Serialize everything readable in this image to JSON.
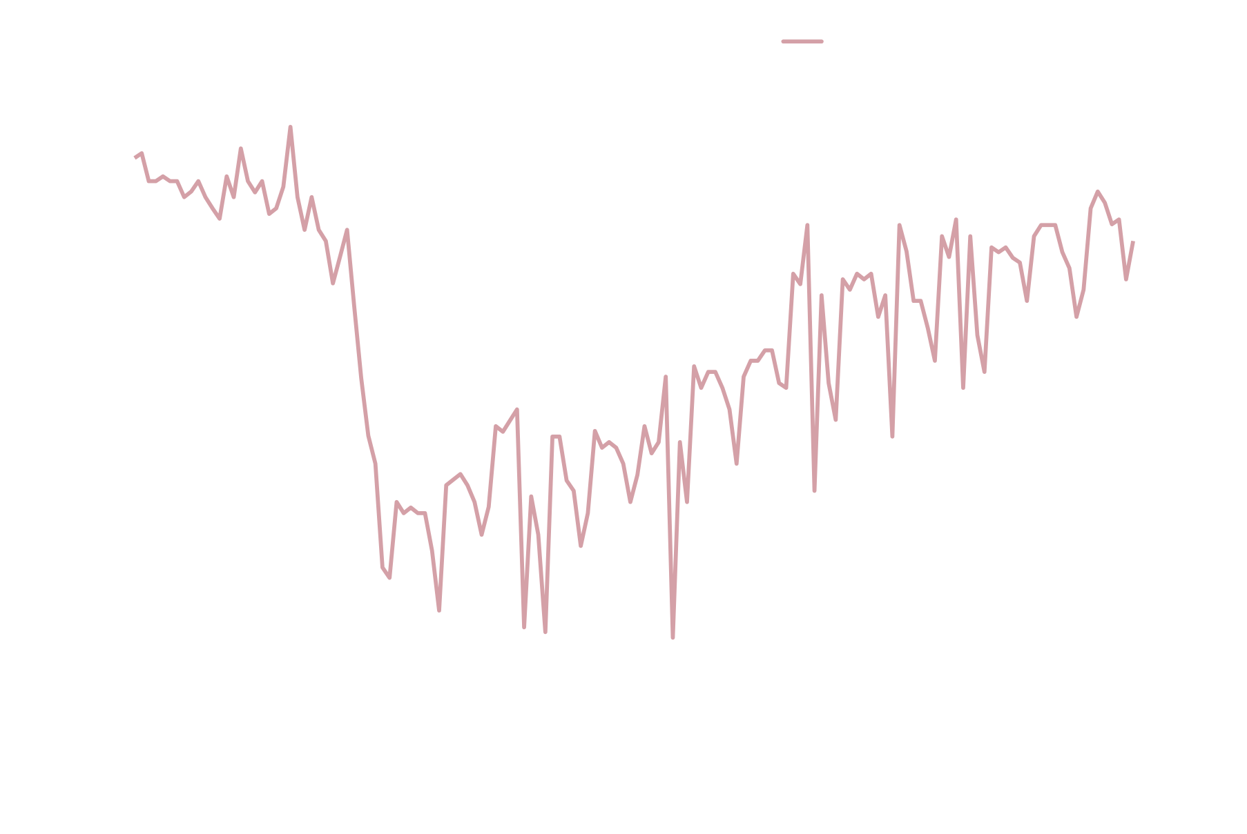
{
  "chart_data": {
    "type": "line",
    "color": "#d4a0a7",
    "ylim": [
      0,
      1045
    ],
    "values": [
      847,
      853,
      818,
      818,
      824,
      818,
      818,
      798,
      805,
      818,
      798,
      784,
      771,
      824,
      798,
      859,
      818,
      804,
      818,
      777,
      784,
      811,
      886,
      798,
      757,
      798,
      757,
      743,
      690,
      723,
      757,
      662,
      571,
      499,
      464,
      334,
      321,
      416,
      402,
      409,
      402,
      402,
      355,
      280,
      437,
      444,
      451,
      437,
      416,
      375,
      410,
      511,
      504,
      518,
      532,
      259,
      423,
      375,
      253,
      498,
      498,
      443,
      430,
      361,
      402,
      505,
      484,
      491,
      484,
      464,
      416,
      450,
      511,
      477,
      491,
      573,
      246,
      491,
      416,
      586,
      559,
      579,
      579,
      559,
      532,
      464,
      573,
      593,
      593,
      606,
      606,
      565,
      559,
      702,
      689,
      763,
      430,
      675,
      565,
      519,
      695,
      682,
      702,
      695,
      702,
      648,
      675,
      498,
      763,
      730,
      668,
      668,
      634,
      593,
      749,
      723,
      770,
      559,
      749,
      625,
      579,
      735,
      729,
      735,
      722,
      716,
      668,
      749,
      763,
      763,
      763,
      729,
      709,
      648,
      682,
      784,
      805,
      791,
      764,
      770,
      695,
      743
    ]
  }
}
